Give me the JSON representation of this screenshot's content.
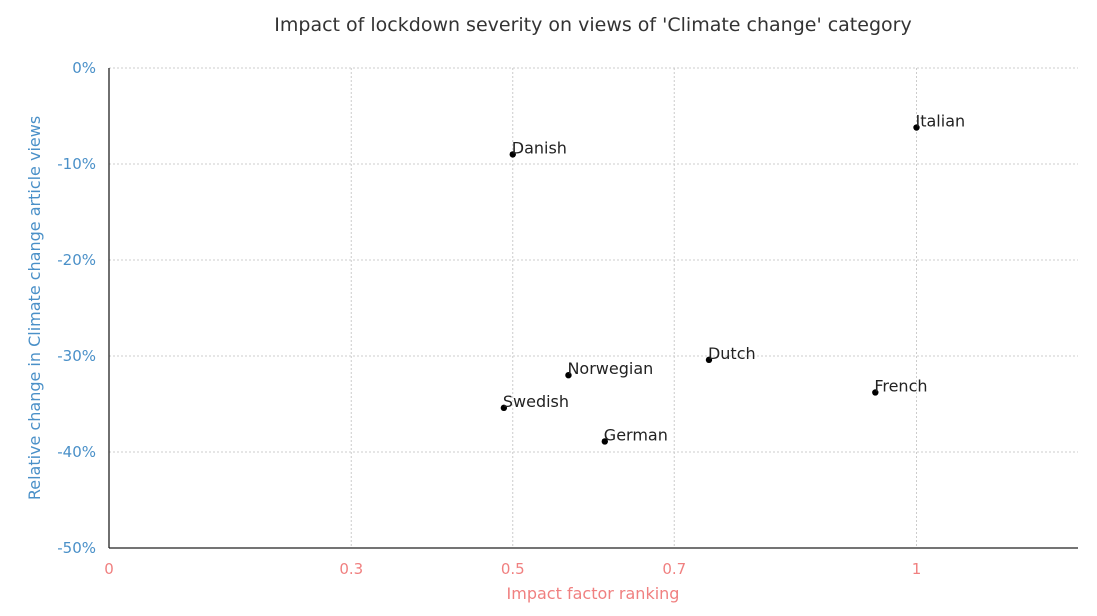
{
  "chart_data": {
    "type": "scatter",
    "title": "Impact of lockdown severity on views of 'Climate change' category",
    "xlabel": "Impact factor ranking",
    "ylabel": "Relative change in Climate change article views",
    "xlim": [
      0,
      1.2
    ],
    "ylim": [
      -50,
      0
    ],
    "x_ticks": [
      {
        "value": 0,
        "label": "0"
      },
      {
        "value": 0.3,
        "label": "0.3"
      },
      {
        "value": 0.5,
        "label": "0.5"
      },
      {
        "value": 0.7,
        "label": "0.7"
      },
      {
        "value": 1.0,
        "label": "1"
      }
    ],
    "y_ticks": [
      {
        "value": 0,
        "label": "0%"
      },
      {
        "value": -10,
        "label": "-10%"
      },
      {
        "value": -20,
        "label": "-20%"
      },
      {
        "value": -30,
        "label": "-30%"
      },
      {
        "value": -40,
        "label": "-40%"
      },
      {
        "value": -50,
        "label": "-50%"
      }
    ],
    "grid": true,
    "points": [
      {
        "label": "Italian",
        "x": 1.0,
        "y": -6.2
      },
      {
        "label": "Danish",
        "x": 0.5,
        "y": -9.0
      },
      {
        "label": "Dutch",
        "x": 0.743,
        "y": -30.4
      },
      {
        "label": "Norwegian",
        "x": 0.569,
        "y": -32.0
      },
      {
        "label": "French",
        "x": 0.949,
        "y": -33.8
      },
      {
        "label": "Swedish",
        "x": 0.489,
        "y": -35.4
      },
      {
        "label": "German",
        "x": 0.614,
        "y": -38.9
      }
    ],
    "colors": {
      "ytick": "#4a90c8",
      "xtick": "#f08080",
      "ylabel": "#4a90c8",
      "xlabel": "#f08080",
      "point": "#000000"
    }
  }
}
